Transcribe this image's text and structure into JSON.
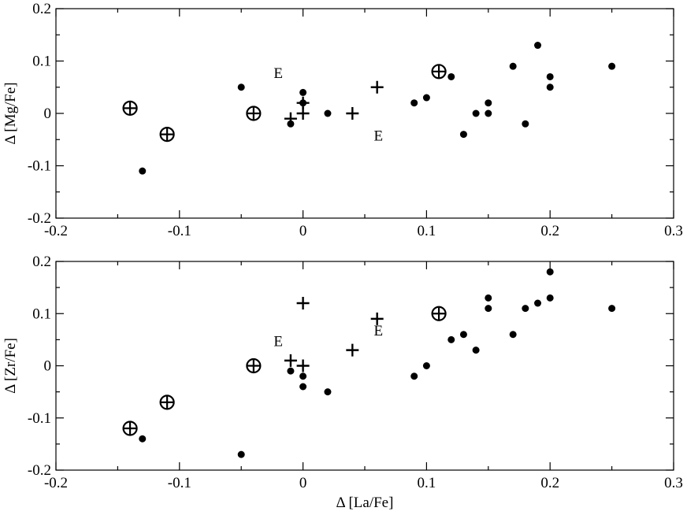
{
  "chart_data": [
    {
      "type": "scatter",
      "xlabel": "",
      "ylabel": "Δ [Mg/Fe]",
      "xlim": [
        -0.2,
        0.3
      ],
      "ylim": [
        -0.2,
        0.2
      ],
      "xticks": [
        -0.2,
        -0.1,
        0,
        0.1,
        0.2,
        0.3
      ],
      "xtick_labels": [
        "-0.2",
        "-0.1",
        "0",
        "0.1",
        "0.2",
        "0.3"
      ],
      "yticks": [
        -0.2,
        -0.1,
        0,
        0.1,
        0.2
      ],
      "ytick_labels": [
        "-0.2",
        "-0.1",
        "0",
        "0.1",
        "0.2"
      ],
      "grid": false,
      "series": [
        {
          "marker": "circled-plus",
          "points": [
            [
              -0.14,
              0.01
            ],
            [
              -0.11,
              -0.04
            ],
            [
              -0.04,
              0.0
            ],
            [
              0.11,
              0.08
            ]
          ]
        },
        {
          "marker": "plus",
          "points": [
            [
              -0.01,
              -0.01
            ],
            [
              0.0,
              0.02
            ],
            [
              0.0,
              0.0
            ],
            [
              0.04,
              0.0
            ],
            [
              0.06,
              0.05
            ]
          ]
        },
        {
          "marker": "dot",
          "points": [
            [
              -0.13,
              -0.11
            ],
            [
              -0.05,
              0.05
            ],
            [
              -0.01,
              -0.02
            ],
            [
              0.0,
              0.04
            ],
            [
              0.0,
              0.02
            ],
            [
              0.02,
              0.0
            ],
            [
              0.09,
              0.02
            ],
            [
              0.1,
              0.03
            ],
            [
              0.12,
              0.07
            ],
            [
              0.13,
              -0.04
            ],
            [
              0.14,
              0.0
            ],
            [
              0.15,
              0.02
            ],
            [
              0.15,
              0.0
            ],
            [
              0.17,
              0.09
            ],
            [
              0.18,
              -0.02
            ],
            [
              0.19,
              0.13
            ],
            [
              0.2,
              0.07
            ],
            [
              0.2,
              0.05
            ],
            [
              0.25,
              0.09
            ]
          ]
        }
      ],
      "annotations": [
        {
          "text": "E",
          "x": -0.02,
          "y": 0.068
        },
        {
          "text": "E",
          "x": 0.061,
          "y": -0.052
        }
      ]
    },
    {
      "type": "scatter",
      "xlabel": "Δ [La/Fe]",
      "ylabel": "Δ [Zr/Fe]",
      "xlim": [
        -0.2,
        0.3
      ],
      "ylim": [
        -0.2,
        0.2
      ],
      "xticks": [
        -0.2,
        -0.1,
        0,
        0.1,
        0.2,
        0.3
      ],
      "xtick_labels": [
        "-0.2",
        "-0.1",
        "0",
        "0.1",
        "0.2",
        "0.3"
      ],
      "yticks": [
        -0.2,
        -0.1,
        0,
        0.1,
        0.2
      ],
      "ytick_labels": [
        "-0.2",
        "-0.1",
        "0",
        "0.1",
        "0.2"
      ],
      "grid": false,
      "series": [
        {
          "marker": "circled-plus",
          "points": [
            [
              -0.14,
              -0.12
            ],
            [
              -0.11,
              -0.07
            ],
            [
              -0.04,
              0.0
            ],
            [
              0.11,
              0.1
            ]
          ]
        },
        {
          "marker": "plus",
          "points": [
            [
              -0.01,
              0.01
            ],
            [
              0.0,
              0.0
            ],
            [
              0.0,
              0.12
            ],
            [
              0.04,
              0.03
            ],
            [
              0.06,
              0.09
            ]
          ]
        },
        {
          "marker": "dot",
          "points": [
            [
              -0.13,
              -0.14
            ],
            [
              -0.05,
              -0.17
            ],
            [
              -0.01,
              -0.01
            ],
            [
              0.0,
              -0.02
            ],
            [
              0.0,
              -0.04
            ],
            [
              0.02,
              -0.05
            ],
            [
              0.09,
              -0.02
            ],
            [
              0.1,
              0.0
            ],
            [
              0.12,
              0.05
            ],
            [
              0.13,
              0.06
            ],
            [
              0.14,
              0.03
            ],
            [
              0.15,
              0.13
            ],
            [
              0.15,
              0.11
            ],
            [
              0.17,
              0.06
            ],
            [
              0.18,
              0.11
            ],
            [
              0.19,
              0.12
            ],
            [
              0.2,
              0.18
            ],
            [
              0.2,
              0.13
            ],
            [
              0.25,
              0.11
            ]
          ]
        }
      ],
      "annotations": [
        {
          "text": "E",
          "x": -0.02,
          "y": 0.038
        },
        {
          "text": "E",
          "x": 0.061,
          "y": 0.058
        }
      ]
    }
  ]
}
